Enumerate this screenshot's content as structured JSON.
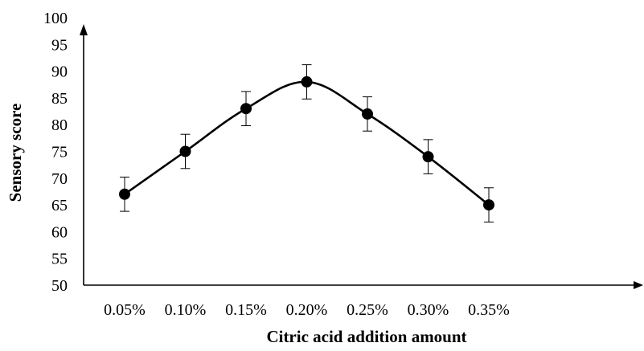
{
  "chart_data": {
    "type": "line",
    "title": "",
    "xlabel": "Citric acid addition amount",
    "ylabel": "Sensory score",
    "categories": [
      "0.05%",
      "0.10%",
      "0.15%",
      "0.20%",
      "0.25%",
      "0.30%",
      "0.35%"
    ],
    "series": [
      {
        "values": [
          67,
          75,
          83,
          88,
          82,
          74,
          65
        ],
        "error": [
          3.2,
          3.2,
          3.2,
          3.2,
          3.2,
          3.2,
          3.2
        ]
      }
    ],
    "ylim": [
      50,
      100
    ],
    "yticks": [
      "50",
      "55",
      "60",
      "65",
      "70",
      "75",
      "80",
      "85",
      "90",
      "95",
      "100"
    ],
    "grid": false,
    "legend": "none",
    "smooth": true,
    "colors": {
      "line": "#000000",
      "marker": "#000000",
      "axis": "#000000"
    }
  }
}
